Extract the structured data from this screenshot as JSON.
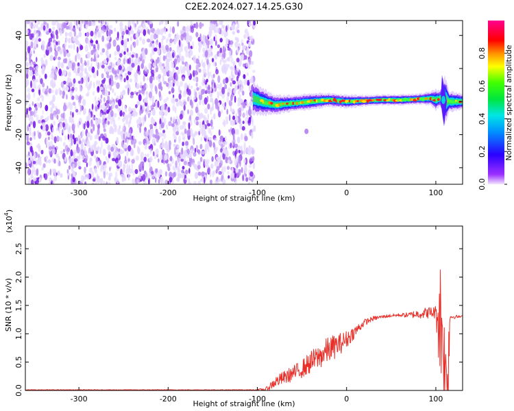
{
  "title": "C2E2.2024.027.14.25.G30",
  "colors": {
    "snr_line": "#e8302a",
    "frame": "#000000",
    "noise_light": "#e6d9ff",
    "noise_mid": "#b98cf2",
    "noise_dark": "#7a1fe6"
  },
  "chart_data": [
    {
      "type": "heatmap",
      "title": "",
      "xlabel": "Height of straight line (km)",
      "ylabel": "Frequency (Hz)",
      "xlim": [
        -360,
        130
      ],
      "ylim": [
        -50,
        49
      ],
      "x_ticks": [
        -300,
        -200,
        -100,
        0,
        100
      ],
      "x_tick_labels": [
        "-300",
        "-200",
        "-100",
        "0",
        "100"
      ],
      "y_ticks": [
        -40,
        -20,
        0,
        20,
        40
      ],
      "y_tick_labels": [
        "-40",
        "-20",
        "0",
        "20",
        "40"
      ],
      "noise_region_x": [
        -360,
        -103
      ],
      "signal_band": {
        "x": [
          -105,
          -95,
          -80,
          -60,
          -40,
          -20,
          0,
          20,
          40,
          60,
          80,
          95,
          100,
          105,
          110,
          115,
          130
        ],
        "center_hz": [
          2,
          0,
          -2,
          -1,
          0,
          1,
          0,
          0.5,
          1,
          1,
          1.5,
          2,
          1,
          2,
          1,
          0,
          0
        ],
        "half_width_hz": [
          6,
          5,
          3.5,
          3,
          3,
          2.5,
          2.5,
          2,
          2,
          2,
          2,
          2.5,
          4,
          3,
          10,
          4,
          3
        ]
      },
      "spike": {
        "x_range": [
          102,
          118
        ],
        "freq_range_hz": [
          -15,
          16
        ]
      },
      "stray_blob": {
        "x": -45,
        "freq_hz": -18
      },
      "colorbar": {
        "label": "Normalized spectral amplitude",
        "range": [
          0,
          1
        ],
        "ticks": [
          0.0,
          0.2,
          0.4,
          0.6,
          0.8
        ],
        "tick_labels": [
          "0.0",
          "0.2",
          "0.4",
          "0.6",
          "0.8"
        ],
        "colormap": "rainbow (purple-blue-cyan-green-yellow-orange-red-magenta)"
      }
    },
    {
      "type": "line",
      "title": "",
      "xlabel": "Height of straight line (km)",
      "ylabel": "SNR (10 * v/v)",
      "y_multiplier_label": "(x10",
      "y_multiplier_exp": "4",
      "y_multiplier_close": ")",
      "xlim": [
        -360,
        130
      ],
      "ylim": [
        0,
        2.9
      ],
      "y_units_scale": 10000,
      "x_ticks": [
        -300,
        -200,
        -100,
        0,
        100
      ],
      "x_tick_labels": [
        "-300",
        "-200",
        "-100",
        "0",
        "100"
      ],
      "y_ticks": [
        0.0,
        0.5,
        1.0,
        1.5,
        2.0,
        2.5
      ],
      "y_tick_labels": [
        "0.0",
        "0.5",
        "1.0",
        "1.5",
        "2.0",
        "2.5"
      ],
      "series": [
        {
          "name": "SNR",
          "x": [
            -360,
            -300,
            -200,
            -110,
            -100,
            -90,
            -80,
            -60,
            -50,
            -40,
            -30,
            -20,
            -10,
            0,
            10,
            20,
            30,
            40,
            50,
            60,
            70,
            80,
            90,
            100,
            103,
            105,
            108,
            110,
            112,
            114,
            116,
            130
          ],
          "y": [
            0.01,
            0.01,
            0.01,
            0.01,
            0.01,
            0.02,
            0.15,
            0.3,
            0.38,
            0.5,
            0.6,
            0.72,
            0.8,
            0.9,
            1.05,
            1.2,
            1.27,
            1.3,
            1.32,
            1.33,
            1.33,
            1.35,
            1.37,
            1.38,
            1.3,
            1.25,
            1.0,
            0.4,
            0.2,
            0.6,
            1.3,
            1.3
          ],
          "noise_amp": [
            0.005,
            0.005,
            0.005,
            0.005,
            0.01,
            0.04,
            0.1,
            0.14,
            0.16,
            0.2,
            0.22,
            0.24,
            0.2,
            0.16,
            0.1,
            0.06,
            0.04,
            0.03,
            0.03,
            0.03,
            0.05,
            0.08,
            0.1,
            0.12,
            0.8,
            1.2,
            0.9,
            0.8,
            0.5,
            1.0,
            0.04,
            0.02
          ]
        }
      ]
    }
  ]
}
